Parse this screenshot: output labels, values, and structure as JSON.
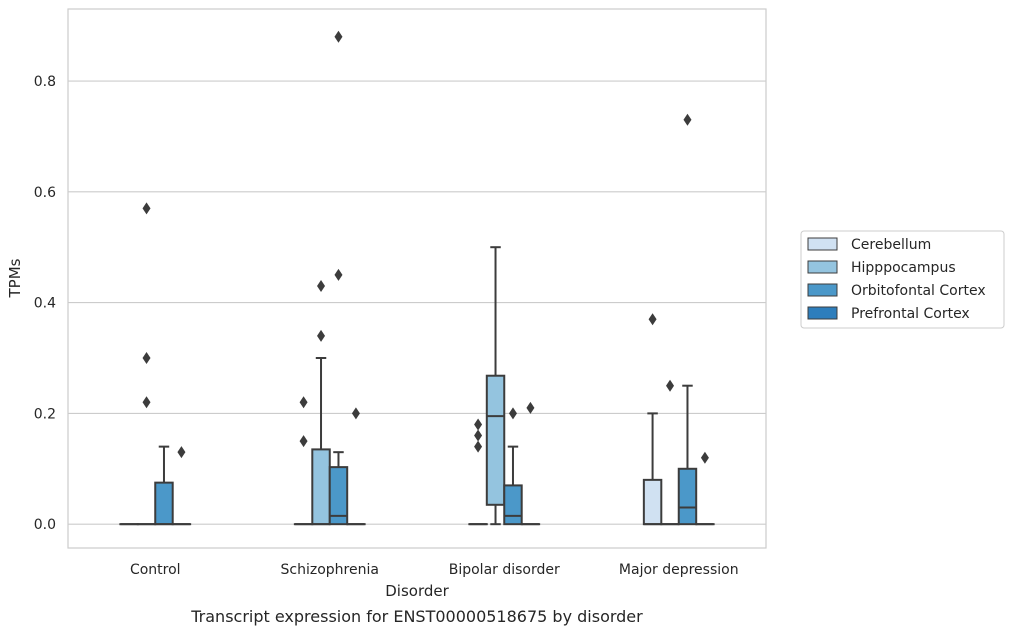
{
  "chart_data": {
    "type": "box",
    "title": "Transcript expression for ENST00000518675 by disorder",
    "xlabel": "Disorder",
    "ylabel": "TPMs",
    "ylim": [
      -0.043,
      0.93
    ],
    "yticks": [
      0.0,
      0.2,
      0.4,
      0.6,
      0.8
    ],
    "ytick_labels": [
      "0.0",
      "0.2",
      "0.4",
      "0.6",
      "0.8"
    ],
    "grid": "horizontal",
    "legend_position": "right",
    "categories": [
      "Control",
      "Schizophrenia",
      "Bipolar disorder",
      "Major depression"
    ],
    "series": [
      {
        "name": "Cerebellum",
        "color": "#d0e1f2",
        "boxes": [
          {
            "q1": 0,
            "median": 0,
            "q3": 0,
            "whisker_low": 0,
            "whisker_high": 0,
            "outliers": []
          },
          {
            "q1": 0,
            "median": 0,
            "q3": 0,
            "whisker_low": 0,
            "whisker_high": 0,
            "outliers": [
              0.15,
              0.22
            ]
          },
          {
            "q1": 0,
            "median": 0,
            "q3": 0,
            "whisker_low": 0,
            "whisker_high": 0,
            "outliers": [
              0.14,
              0.16,
              0.18
            ]
          },
          {
            "q1": 0,
            "median": 0,
            "q3": 0.08,
            "whisker_low": 0,
            "whisker_high": 0.2,
            "outliers": [
              0.37
            ]
          }
        ]
      },
      {
        "name": "Hipppocampus",
        "color": "#94c4df",
        "boxes": [
          {
            "q1": 0,
            "median": 0,
            "q3": 0,
            "whisker_low": 0,
            "whisker_high": 0,
            "outliers": [
              0.22,
              0.3,
              0.57
            ]
          },
          {
            "q1": 0,
            "median": 0,
            "q3": 0.135,
            "whisker_low": 0,
            "whisker_high": 0.3,
            "outliers": [
              0.34,
              0.43
            ]
          },
          {
            "q1": 0.035,
            "median": 0.195,
            "q3": 0.268,
            "whisker_low": 0,
            "whisker_high": 0.5,
            "outliers": []
          },
          {
            "q1": 0,
            "median": 0,
            "q3": 0,
            "whisker_low": 0,
            "whisker_high": 0,
            "outliers": [
              0.25
            ]
          }
        ]
      },
      {
        "name": "Orbitofontal Cortex",
        "color": "#4b98c9",
        "boxes": [
          {
            "q1": 0,
            "median": 0,
            "q3": 0.075,
            "whisker_low": 0,
            "whisker_high": 0.14,
            "outliers": []
          },
          {
            "q1": 0,
            "median": 0.015,
            "q3": 0.103,
            "whisker_low": 0,
            "whisker_high": 0.13,
            "outliers": [
              0.45,
              0.88
            ]
          },
          {
            "q1": 0,
            "median": 0.015,
            "q3": 0.07,
            "whisker_low": 0,
            "whisker_high": 0.14,
            "outliers": [
              0.2
            ]
          },
          {
            "q1": 0,
            "median": 0.03,
            "q3": 0.1,
            "whisker_low": 0,
            "whisker_high": 0.25,
            "outliers": [
              0.73
            ]
          }
        ]
      },
      {
        "name": "Prefrontal Cortex",
        "color": "#2e7ebc",
        "boxes": [
          {
            "q1": 0,
            "median": 0,
            "q3": 0,
            "whisker_low": 0,
            "whisker_high": 0,
            "outliers": [
              0.13
            ]
          },
          {
            "q1": 0,
            "median": 0,
            "q3": 0,
            "whisker_low": 0,
            "whisker_high": 0,
            "outliers": [
              0.2
            ]
          },
          {
            "q1": 0,
            "median": 0,
            "q3": 0,
            "whisker_low": 0,
            "whisker_high": 0,
            "outliers": [
              0.21
            ]
          },
          {
            "q1": 0,
            "median": 0,
            "q3": 0,
            "whisker_low": 0,
            "whisker_high": 0,
            "outliers": [
              0.12
            ]
          }
        ]
      }
    ]
  }
}
